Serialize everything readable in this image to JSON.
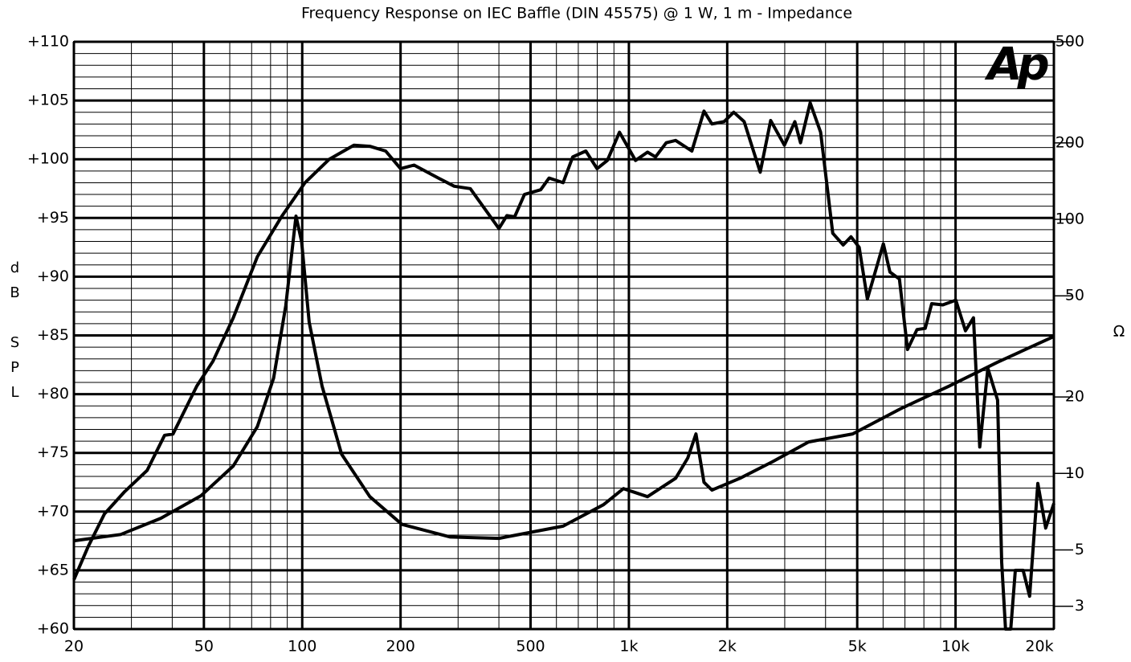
{
  "chart_data": {
    "type": "line",
    "title": "Frequency Response on IEC Baffle (DIN 45575) @ 1 W, 1 m - Impedance",
    "ylabel": "dB SPL",
    "y2label": "Ω",
    "logo": "Ap",
    "xscale": "log",
    "y2scale": "log",
    "grid": true,
    "xlim": [
      20,
      20000
    ],
    "xticks": [
      20,
      50,
      100,
      200,
      500,
      {
        "value": 1000,
        "label": "1k"
      },
      {
        "value": 2000,
        "label": "2k"
      },
      {
        "value": 5000,
        "label": "5k"
      },
      {
        "value": 10000,
        "label": "10k"
      },
      {
        "value": 20000,
        "label": "20k"
      }
    ],
    "xminor": [
      30,
      40,
      60,
      70,
      80,
      90,
      300,
      400,
      600,
      700,
      800,
      900,
      3000,
      4000,
      6000,
      7000,
      8000,
      9000
    ],
    "ylim": [
      60,
      110
    ],
    "yticks": [
      {
        "value": 110,
        "label": "+110"
      },
      {
        "value": 105,
        "label": "+105"
      },
      {
        "value": 100,
        "label": "+100"
      },
      {
        "value": 95,
        "label": "+95"
      },
      {
        "value": 90,
        "label": "+90"
      },
      {
        "value": 85,
        "label": "+85"
      },
      {
        "value": 80,
        "label": "+80"
      },
      {
        "value": 75,
        "label": "+75"
      },
      {
        "value": 70,
        "label": "+70"
      },
      {
        "value": 65,
        "label": "+65"
      },
      {
        "value": 60,
        "label": "+60"
      }
    ],
    "yminor": [
      61,
      62,
      63,
      64,
      66,
      67,
      68,
      69,
      71,
      72,
      73,
      74,
      76,
      77,
      78,
      79,
      81,
      82,
      83,
      84,
      86,
      87,
      88,
      89,
      91,
      92,
      93,
      94,
      96,
      97,
      98,
      99,
      101,
      102,
      103,
      104,
      106,
      107,
      108,
      109
    ],
    "y2lim": [
      2.44,
      500
    ],
    "y2ticks": [
      500,
      200,
      100,
      50,
      20,
      10,
      5,
      3
    ],
    "series": [
      {
        "color": "#000000",
        "x": [
          20,
          22.1,
          24.8,
          28.6,
          33.5,
          37.9,
          40.2,
          47.6,
          53.3,
          61.5,
          72.9,
          86.4,
          102,
          121,
          144,
          161,
          180,
          200,
          220,
          261,
          292,
          327,
          400,
          423,
          447,
          479,
          537,
          570,
          629,
          673,
          738,
          799,
          859,
          936,
          1048,
          1140,
          1207,
          1301,
          1390,
          1559,
          1698,
          1796,
          1956,
          2094,
          2254,
          2523,
          2716,
          2992,
          3221,
          3353,
          3589,
          3863,
          4207,
          4530,
          4786,
          5070,
          5370,
          6012,
          6296,
          6732,
          7130,
          7621,
          8072,
          8454,
          9141,
          10020,
          10720,
          11350,
          11860,
          12560,
          13450,
          13840,
          14220,
          14760,
          15240,
          16100,
          16860,
          17860,
          18880,
          20000
        ],
        "values": [
          64.2,
          67.0,
          69.8,
          71.7,
          73.5,
          76.5,
          76.6,
          80.7,
          82.8,
          86.5,
          91.7,
          95.1,
          98.0,
          100.0,
          101.2,
          101.1,
          100.7,
          99.2,
          99.5,
          98.4,
          97.7,
          97.5,
          94.1,
          95.2,
          95.1,
          97.0,
          97.4,
          98.4,
          98.0,
          100.2,
          100.7,
          99.2,
          99.9,
          102.3,
          99.9,
          100.6,
          100.2,
          101.4,
          101.6,
          100.7,
          104.1,
          103.0,
          103.2,
          104.0,
          103.2,
          98.9,
          103.3,
          101.2,
          103.2,
          101.4,
          104.8,
          102.3,
          93.7,
          92.7,
          93.4,
          92.5,
          88.1,
          92.8,
          90.4,
          89.8,
          83.8,
          85.5,
          85.6,
          87.7,
          87.6,
          88.0,
          85.4,
          86.5,
          75.5,
          82.2,
          79.5,
          65.7,
          60,
          60,
          65.0,
          65.0,
          62.8,
          72.4,
          68.6,
          70.7
        ]
      },
      {
        "color": "#000000",
        "axis": "y2",
        "x": [
          20,
          27.8,
          36.9,
          49,
          61.5,
          72.9,
          81.7,
          89,
          95.7,
          99.6,
          105,
          115,
          132,
          161,
          202,
          284,
          400,
          629,
          836,
          962,
          1140,
          1390,
          1514,
          1604,
          1698,
          1796,
          2188,
          2748,
          3548,
          4842,
          6808,
          9572,
          13450,
          20000
        ],
        "values": [
          5.43,
          5.75,
          6.66,
          8.17,
          10.7,
          15.3,
          23.7,
          45.6,
          103,
          81.7,
          39.4,
          22.1,
          11.9,
          8.1,
          6.3,
          5.62,
          5.55,
          6.2,
          7.53,
          8.71,
          8.1,
          9.57,
          11.5,
          14.3,
          9.23,
          8.6,
          9.57,
          11.1,
          13.3,
          14.3,
          18.0,
          22.1,
          27.4,
          34.6
        ]
      }
    ]
  }
}
